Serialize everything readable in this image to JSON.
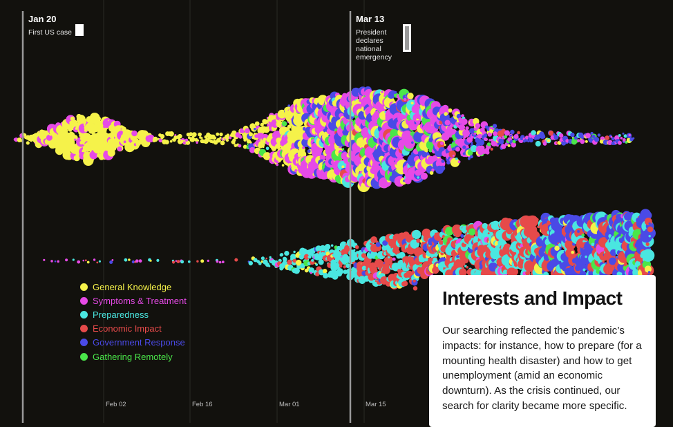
{
  "chart_data": {
    "type": "beeswarm",
    "x_axis": {
      "ticks": [
        "Feb 02",
        "Feb 16",
        "Mar 01",
        "Mar 15"
      ]
    },
    "annotations": [
      {
        "date": "Jan 20",
        "text": "First US case"
      },
      {
        "date": "Mar 13",
        "text": "President declares national emergency"
      }
    ],
    "legend": [
      {
        "label": "General Knowledge",
        "color": "#f5f24a"
      },
      {
        "label": "Symptoms & Treatment",
        "color": "#e64ae6"
      },
      {
        "label": "Preparedness",
        "color": "#4ae6e0"
      },
      {
        "label": "Economic Impact",
        "color": "#e64a4a"
      },
      {
        "label": "Government Response",
        "color": "#4a4ae6"
      },
      {
        "label": "Gathering Remotely",
        "color": "#4ae64a"
      }
    ]
  },
  "panel": {
    "title": "Interests and Impact",
    "body": "Our searching reflected the pandemic’s impacts: for instance, how to prepare (for a mounting health disaster) and how to get unemployment (amid an economic downturn). As the crisis continued, our search for clarity became more specific."
  }
}
